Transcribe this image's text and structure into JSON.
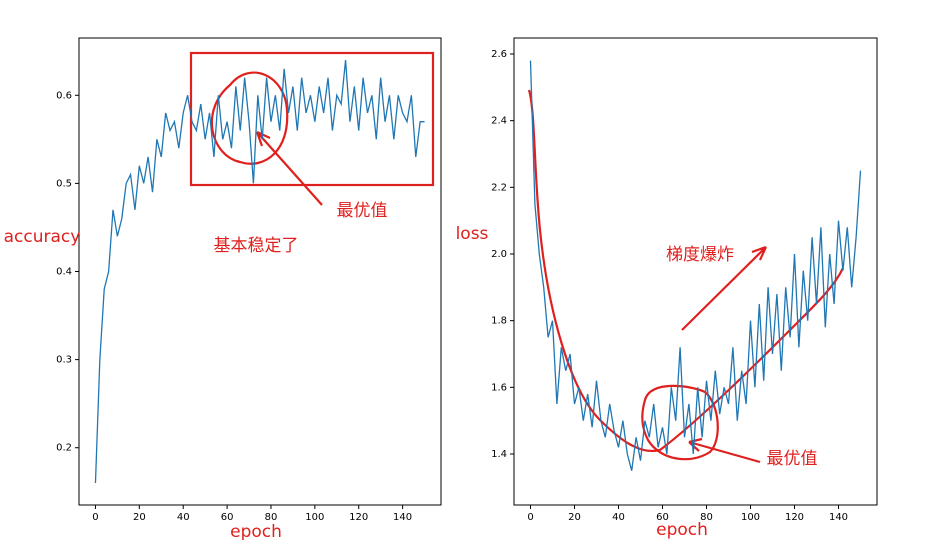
{
  "chart_data": [
    {
      "type": "line",
      "xlabel": "epoch",
      "ylabel": "accuracy",
      "color": "#1f77b4",
      "annotations": [
        "最优值",
        "基本稳定了"
      ],
      "xlim": [
        -7.5,
        157.5
      ],
      "xticks": [
        0,
        20,
        40,
        60,
        80,
        100,
        120,
        140
      ],
      "ylim": [
        0.135,
        0.665
      ],
      "yticks": [
        0.2,
        0.3,
        0.4,
        0.5,
        0.6
      ],
      "x": [
        0,
        2,
        4,
        6,
        8,
        10,
        12,
        14,
        16,
        18,
        20,
        22,
        24,
        26,
        28,
        30,
        32,
        34,
        36,
        38,
        40,
        42,
        44,
        46,
        48,
        50,
        52,
        54,
        56,
        58,
        60,
        62,
        64,
        66,
        68,
        70,
        72,
        74,
        76,
        78,
        80,
        82,
        84,
        86,
        88,
        90,
        92,
        94,
        96,
        98,
        100,
        102,
        104,
        106,
        108,
        110,
        112,
        114,
        116,
        118,
        120,
        122,
        124,
        126,
        128,
        130,
        132,
        134,
        136,
        138,
        140,
        142,
        144,
        146,
        148,
        150
      ],
      "values": [
        0.16,
        0.3,
        0.38,
        0.4,
        0.47,
        0.44,
        0.46,
        0.5,
        0.51,
        0.47,
        0.52,
        0.5,
        0.53,
        0.49,
        0.55,
        0.53,
        0.58,
        0.56,
        0.57,
        0.54,
        0.58,
        0.6,
        0.57,
        0.56,
        0.59,
        0.55,
        0.58,
        0.53,
        0.6,
        0.55,
        0.57,
        0.54,
        0.61,
        0.56,
        0.62,
        0.57,
        0.5,
        0.6,
        0.55,
        0.62,
        0.57,
        0.6,
        0.56,
        0.63,
        0.58,
        0.61,
        0.56,
        0.62,
        0.58,
        0.6,
        0.57,
        0.61,
        0.58,
        0.62,
        0.56,
        0.6,
        0.59,
        0.64,
        0.57,
        0.61,
        0.56,
        0.62,
        0.58,
        0.6,
        0.55,
        0.62,
        0.57,
        0.6,
        0.55,
        0.6,
        0.58,
        0.57,
        0.6,
        0.53,
        0.57,
        0.57
      ]
    },
    {
      "type": "line",
      "xlabel": "epoch",
      "ylabel": "loss",
      "color": "#1f77b4",
      "annotations": [
        "梯度爆炸",
        "最优值"
      ],
      "xlim": [
        -7.5,
        157.5
      ],
      "xticks": [
        0,
        20,
        40,
        60,
        80,
        100,
        120,
        140
      ],
      "ylim": [
        1.247,
        2.648
      ],
      "yticks": [
        1.4,
        1.6,
        1.8,
        {
          "value": 2,
          "label": "2.0"
        },
        2.2,
        2.4,
        2.6
      ],
      "x": [
        0,
        2,
        4,
        6,
        8,
        10,
        12,
        14,
        16,
        18,
        20,
        22,
        24,
        26,
        28,
        30,
        32,
        34,
        36,
        38,
        40,
        42,
        44,
        46,
        48,
        50,
        52,
        54,
        56,
        58,
        60,
        62,
        64,
        66,
        68,
        70,
        72,
        74,
        76,
        78,
        80,
        82,
        84,
        86,
        88,
        90,
        92,
        94,
        96,
        98,
        100,
        102,
        104,
        106,
        108,
        110,
        112,
        114,
        116,
        118,
        120,
        122,
        124,
        126,
        128,
        130,
        132,
        134,
        136,
        138,
        140,
        142,
        144,
        146,
        148,
        150
      ],
      "values": [
        2.58,
        2.15,
        2.0,
        1.9,
        1.75,
        1.8,
        1.55,
        1.72,
        1.65,
        1.7,
        1.55,
        1.6,
        1.5,
        1.58,
        1.48,
        1.62,
        1.5,
        1.45,
        1.55,
        1.47,
        1.42,
        1.5,
        1.4,
        1.35,
        1.45,
        1.38,
        1.5,
        1.45,
        1.55,
        1.42,
        1.48,
        1.4,
        1.6,
        1.5,
        1.72,
        1.45,
        1.55,
        1.4,
        1.6,
        1.45,
        1.62,
        1.5,
        1.65,
        1.52,
        1.6,
        1.55,
        1.72,
        1.5,
        1.65,
        1.55,
        1.8,
        1.6,
        1.85,
        1.62,
        1.9,
        1.7,
        1.88,
        1.65,
        1.9,
        1.75,
        2.0,
        1.72,
        1.95,
        1.8,
        2.05,
        1.85,
        2.08,
        1.78,
        2.0,
        1.85,
        2.1,
        1.95,
        2.08,
        1.9,
        2.05,
        2.25
      ]
    }
  ]
}
